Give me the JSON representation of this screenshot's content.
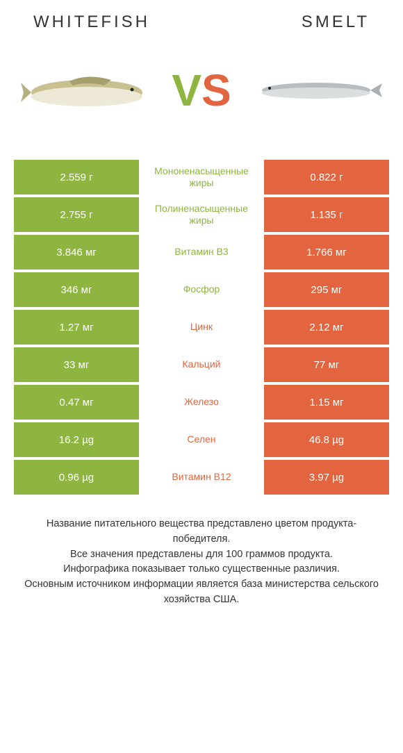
{
  "colors": {
    "left": "#8eb53f",
    "right": "#e2653f",
    "background": "#ffffff",
    "text": "#333333"
  },
  "header": {
    "left_title": "WHITEFISH",
    "right_title": "SMELT"
  },
  "vs": {
    "v": "V",
    "s": "S"
  },
  "table": {
    "rows": [
      {
        "left": "2.559 г",
        "label": "Мононенасыщенные жиры",
        "right": "0.822 г",
        "winner": "left"
      },
      {
        "left": "2.755 г",
        "label": "Полиненасыщенные жиры",
        "right": "1.135 г",
        "winner": "left"
      },
      {
        "left": "3.846 мг",
        "label": "Витамин B3",
        "right": "1.766 мг",
        "winner": "left"
      },
      {
        "left": "346 мг",
        "label": "Фосфор",
        "right": "295 мг",
        "winner": "left"
      },
      {
        "left": "1.27 мг",
        "label": "Цинк",
        "right": "2.12 мг",
        "winner": "right"
      },
      {
        "left": "33 мг",
        "label": "Кальций",
        "right": "77 мг",
        "winner": "right"
      },
      {
        "left": "0.47 мг",
        "label": "Железо",
        "right": "1.15 мг",
        "winner": "right"
      },
      {
        "left": "16.2 µg",
        "label": "Селен",
        "right": "46.8 µg",
        "winner": "right"
      },
      {
        "left": "0.96 µg",
        "label": "Витамин B12",
        "right": "3.97 µg",
        "winner": "right"
      }
    ]
  },
  "footer": {
    "line1": "Название питательного вещества представлено цветом продукта-победителя.",
    "line2": "Все значения представлены для 100 граммов продукта.",
    "line3": "Инфографика показывает только существенные различия.",
    "line4": "Основным источником информации является база министерства сельского хозяйства США."
  }
}
